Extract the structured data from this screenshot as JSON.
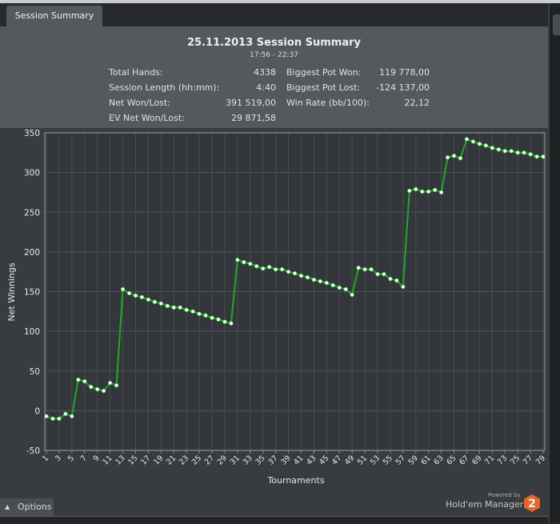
{
  "tab": {
    "label": "Session Summary"
  },
  "summary": {
    "title": "25.11.2013 Session Summary",
    "time_range": "17:56 - 22:37",
    "left_stats": [
      {
        "label": "Total Hands:",
        "value": "4338"
      },
      {
        "label": "Session Length (hh:mm):",
        "value": "4:40"
      },
      {
        "label": "Net Won/Lost:",
        "value": "391 519,00"
      },
      {
        "label": "EV Net Won/Lost:",
        "value": "29 871,58"
      }
    ],
    "right_stats": [
      {
        "label": "Biggest Pot Won:",
        "value": "119 778,00"
      },
      {
        "label": "Biggest Pot Lost:",
        "value": "-124 137,00"
      },
      {
        "label": "Win Rate (bb/100):",
        "value": "22,12"
      }
    ]
  },
  "footer": {
    "options_label": "Options",
    "powered_by": "Powered by",
    "brand": "Hold'em Manager",
    "logo_text": "2",
    "logo_color": "#e0692a"
  },
  "chart_data": {
    "type": "line",
    "xlabel": "Tournaments",
    "ylabel": "Net Winnings",
    "ylim": [
      -50,
      350
    ],
    "yticks": [
      -50,
      0,
      50,
      100,
      150,
      200,
      250,
      300,
      350
    ],
    "xlim": [
      1,
      79
    ],
    "xtick_labels": [
      "1",
      "3",
      "5",
      "7",
      "9",
      "11",
      "13",
      "15",
      "17",
      "19",
      "21",
      "23",
      "25",
      "27",
      "29",
      "31",
      "33",
      "35",
      "37",
      "39",
      "41",
      "43",
      "45",
      "47",
      "49",
      "51",
      "53",
      "55",
      "57",
      "59",
      "61",
      "63",
      "65",
      "67",
      "69",
      "71",
      "73",
      "75",
      "77",
      "79"
    ],
    "grid": true,
    "line_color": "#22a82a",
    "marker_color": "#ffffff",
    "x": [
      1,
      2,
      3,
      4,
      5,
      6,
      7,
      8,
      9,
      10,
      11,
      12,
      13,
      14,
      15,
      16,
      17,
      18,
      19,
      20,
      21,
      22,
      23,
      24,
      25,
      26,
      27,
      28,
      29,
      30,
      31,
      32,
      33,
      34,
      35,
      36,
      37,
      38,
      39,
      40,
      41,
      42,
      43,
      44,
      45,
      46,
      47,
      48,
      49,
      50,
      51,
      52,
      53,
      54,
      55,
      56,
      57,
      58,
      59,
      60,
      61,
      62,
      63,
      64,
      65,
      66,
      67,
      68,
      69,
      70,
      71,
      72,
      73,
      74,
      75,
      76,
      77,
      78,
      79
    ],
    "values": [
      -7,
      -10,
      -10,
      -4,
      -7,
      39,
      37,
      30,
      27,
      25,
      35,
      32,
      153,
      148,
      145,
      143,
      140,
      137,
      135,
      132,
      130,
      130,
      127,
      125,
      122,
      120,
      117,
      115,
      112,
      110,
      190,
      187,
      185,
      182,
      179,
      181,
      178,
      178,
      175,
      173,
      170,
      168,
      165,
      163,
      161,
      158,
      155,
      153,
      146,
      180,
      178,
      178,
      172,
      172,
      166,
      164,
      156,
      277,
      279,
      276,
      276,
      278,
      275,
      319,
      321,
      318,
      342,
      339,
      336,
      334,
      331,
      329,
      327,
      327,
      325,
      325,
      323,
      320,
      320
    ]
  }
}
